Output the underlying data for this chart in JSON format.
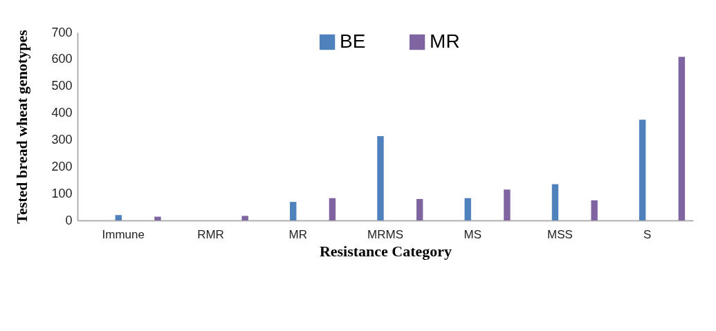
{
  "chart_data": {
    "type": "bar",
    "xlabel": "Resistance Category",
    "ylabel": "Tested bread wheat genotypes",
    "categories": [
      "Immune",
      "RMR",
      "MR",
      "MRMS",
      "MS",
      "MSS",
      "S"
    ],
    "series": [
      {
        "name": "BE",
        "color": "#4f81bd",
        "values": [
          20,
          0,
          69,
          314,
          83,
          135,
          375
        ]
      },
      {
        "name": "MR",
        "color": "#8064a2",
        "values": [
          14,
          17,
          83,
          80,
          115,
          75,
          609
        ]
      }
    ],
    "ylim": [
      0,
      700
    ],
    "yticks": [
      0,
      100,
      200,
      300,
      400,
      500,
      600,
      700
    ],
    "grid": false,
    "legend": "top"
  }
}
